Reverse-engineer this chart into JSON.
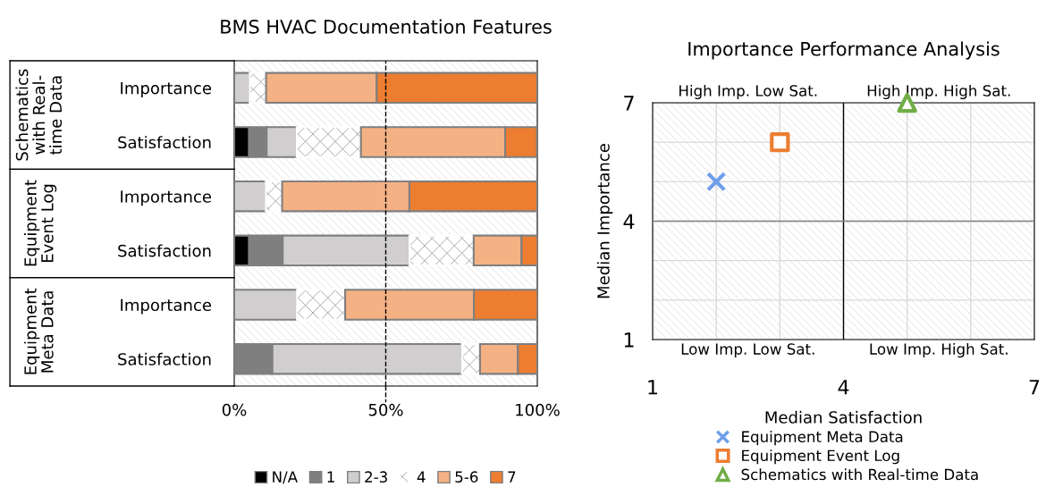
{
  "chart_data": [
    {
      "type": "bar",
      "title": "BMS HVAC Documentation Features",
      "orientation": "horizontal",
      "stacked": true,
      "categories": [
        "Importance",
        "Satisfaction",
        "Importance",
        "Satisfaction",
        "Importance",
        "Satisfaction"
      ],
      "series": [
        {
          "name": "N/A",
          "color": "#000000",
          "values": [
            0,
            4.9,
            0,
            4.9,
            0,
            0
          ]
        },
        {
          "name": "1",
          "color": "#7f7f7f",
          "values": [
            0,
            5.8,
            0,
            11.1,
            0,
            12.6
          ]
        },
        {
          "name": "2-3",
          "color": "#d0cece",
          "values": [
            5.1,
            9.9,
            10.4,
            41.8,
            20.7,
            62.5
          ]
        },
        {
          "name": "4",
          "color": "#ffffff",
          "values": [
            5.4,
            21.2,
            5.4,
            21.2,
            15.9,
            6.0
          ]
        },
        {
          "name": "5-6",
          "color": "#f4b183",
          "values": [
            36.5,
            47.6,
            42.0,
            15.8,
            42.5,
            12.5
          ]
        },
        {
          "name": "7",
          "color": "#ed7d31",
          "values": [
            53.0,
            10.5,
            42.2,
            5.3,
            21.0,
            6.4
          ]
        }
      ],
      "xlim": [
        0,
        100
      ],
      "xticks": [
        {
          "value": 0,
          "label": "0%"
        },
        {
          "value": 50,
          "label": "50%"
        },
        {
          "value": 100,
          "label": "100%"
        }
      ],
      "ref_lines": [
        {
          "axis": "x",
          "value": 50,
          "label": null,
          "color": "#000000",
          "line_style": "dashed"
        }
      ],
      "annotations": [
        "Schematics\nwith Real-\ntime Data",
        "Equipment\nEvent Log",
        "Equipment\nMeta Data"
      ],
      "legend": "bottom",
      "grid": false
    },
    {
      "type": "scatter",
      "title": "Importance Performance Analysis",
      "xlabel": "Median Satisfaction",
      "ylabel": "Median Importance",
      "series": [
        {
          "name": "Equipment Meta Data",
          "color": "#6d9eeb",
          "marker": "cross",
          "x": [
            2
          ],
          "values": [
            5
          ]
        },
        {
          "name": "Equipment Event Log",
          "color": "#ed7d31",
          "marker": "square",
          "x": [
            3
          ],
          "values": [
            6
          ]
        },
        {
          "name": "Schematics with Real-time Data",
          "color": "#70ad47",
          "marker": "triangle",
          "x": [
            5
          ],
          "values": [
            7
          ]
        }
      ],
      "xlim": [
        1,
        7
      ],
      "ylim": [
        1,
        7
      ],
      "xticks": [
        1,
        {
          "value": 2,
          "label": null
        },
        {
          "value": 3,
          "label": null
        },
        4,
        {
          "value": 5,
          "label": null
        },
        {
          "value": 6,
          "label": null
        },
        7
      ],
      "yticks": [
        1,
        {
          "value": 2,
          "label": null
        },
        {
          "value": 3,
          "label": null
        },
        4,
        {
          "value": 5,
          "label": null
        },
        {
          "value": 6,
          "label": null
        },
        7
      ],
      "ref_lines": [
        {
          "axis": "x",
          "value": 4,
          "label": null,
          "color": "#000000"
        },
        {
          "axis": "y",
          "value": 4,
          "label": null,
          "color": "#808080"
        }
      ],
      "annotations": [
        "High Imp. Low Sat.",
        "High Imp. High Sat.",
        "Low Imp. Low Sat.",
        "Low Imp. High Sat."
      ],
      "grid": true,
      "legend": "bottom"
    }
  ]
}
